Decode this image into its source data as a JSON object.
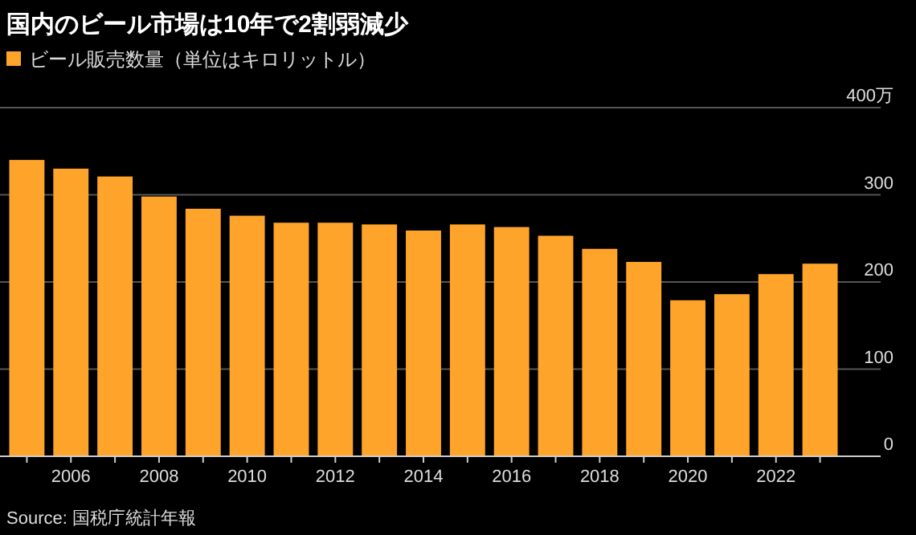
{
  "chart_data": {
    "type": "bar",
    "title": "国内のビール市場は10年で2割弱減少",
    "categories": [
      null,
      "2006",
      null,
      "2008",
      null,
      "2010",
      null,
      "2012",
      null,
      "2014",
      null,
      "2016",
      null,
      "2018",
      null,
      "2020",
      null,
      "2022",
      null
    ],
    "series": [
      {
        "name": "ビール販売数量（単位はキロリットル）",
        "color": "#ffa42b",
        "values": [
          340,
          330,
          321,
          298,
          284,
          276,
          268,
          268,
          266,
          259,
          266,
          263,
          253,
          238,
          223,
          179,
          186,
          209,
          221
        ]
      }
    ],
    "ylim": [
      0,
      400
    ],
    "yticks": [
      0,
      100,
      200,
      300,
      {
        "value": 400,
        "label": "400万"
      }
    ],
    "grid": "y",
    "legend": "top left",
    "annotations": [
      "Source: 国税庁統計年報"
    ]
  }
}
